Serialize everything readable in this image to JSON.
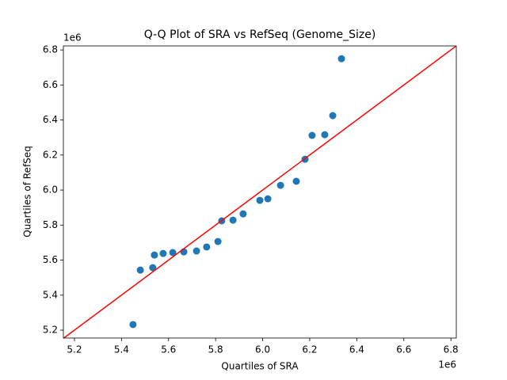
{
  "chart_data": {
    "type": "scatter",
    "title": "Q-Q Plot of SRA vs RefSeq (Genome_Size)",
    "x_label": "Quartiles of SRA",
    "y_label": "Quartiles of RefSeq",
    "x_offset_label": "1e6",
    "y_offset_label": "1e6",
    "x": [
      5.449,
      5.48,
      5.533,
      5.54,
      5.577,
      5.618,
      5.665,
      5.719,
      5.762,
      5.81,
      5.826,
      5.874,
      5.917,
      5.988,
      6.022,
      6.076,
      6.143,
      6.18,
      6.21,
      6.264,
      6.298,
      6.335
    ],
    "values": [
      5.232,
      5.543,
      5.557,
      5.629,
      5.638,
      5.643,
      5.647,
      5.652,
      5.675,
      5.706,
      5.824,
      5.828,
      5.864,
      5.941,
      5.95,
      6.027,
      6.05,
      6.176,
      6.312,
      6.316,
      6.425,
      6.75
    ],
    "color": "#1f77b4",
    "diagonal": true,
    "diagonal_color": "#ff0000",
    "xlim": [
      5.153,
      6.823
    ],
    "ylim": [
      5.155,
      6.823
    ],
    "xticks": [
      5.2,
      5.4,
      5.6,
      5.8,
      {
        "value": 6,
        "label": "6.0"
      },
      6.2,
      6.4,
      6.6,
      6.8
    ],
    "yticks": [
      5.2,
      5.4,
      5.6,
      5.8,
      {
        "value": 6,
        "label": "6.0"
      },
      6.2,
      6.4,
      6.6,
      6.8
    ]
  }
}
